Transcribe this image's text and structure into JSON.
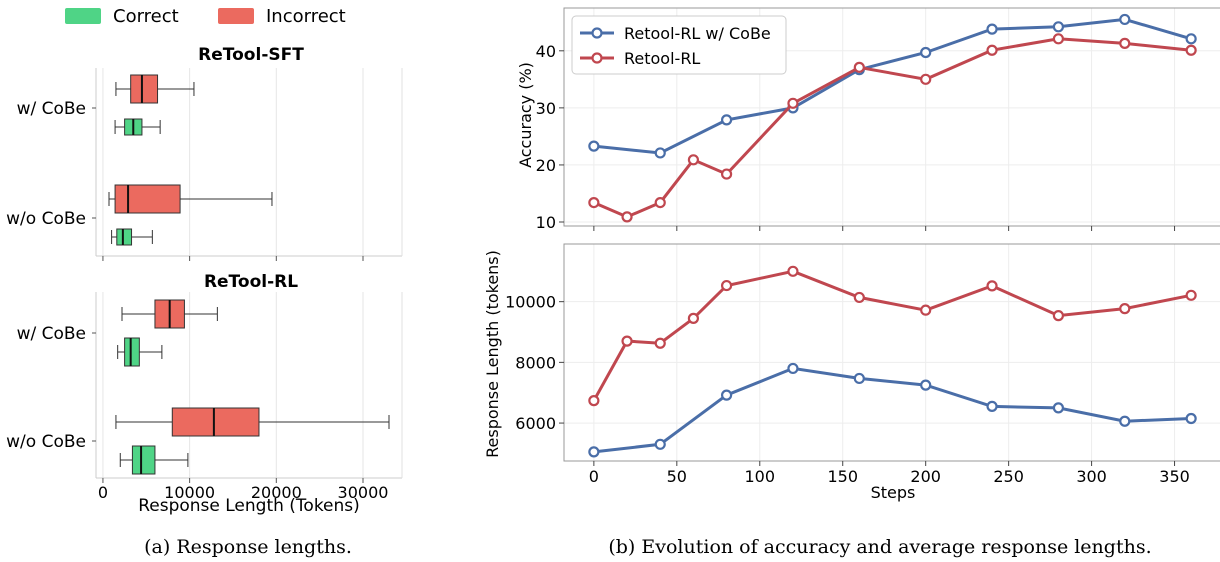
{
  "legend_box": {
    "items": [
      {
        "label": "Correct",
        "color": "#4fd486"
      },
      {
        "label": "Incorrect",
        "color": "#eb6a5f"
      }
    ]
  },
  "captions": {
    "a": "(a) Response lengths.",
    "b": "(b) Evolution of accuracy and average response lengths."
  },
  "chart_data": [
    {
      "type": "box",
      "orientation": "horizontal",
      "title": "ReTool-SFT",
      "categories": [
        "w/ CoBe",
        "w/o CoBe"
      ],
      "xlabel": "",
      "xlim": [
        -800,
        34500
      ],
      "xticks": [
        0,
        10000,
        20000,
        30000
      ],
      "grid": true,
      "series": [
        {
          "name": "Incorrect",
          "color": "#eb6a5f",
          "boxes": [
            {
              "category": "w/ CoBe",
              "whislo": 1500,
              "q1": 3200,
              "med": 4500,
              "q3": 6300,
              "whishi": 10500
            },
            {
              "category": "w/o CoBe",
              "whislo": 700,
              "q1": 1400,
              "med": 2900,
              "q3": 8900,
              "whishi": 19500
            }
          ]
        },
        {
          "name": "Correct",
          "color": "#4fd486",
          "boxes": [
            {
              "category": "w/ CoBe",
              "whislo": 1400,
              "q1": 2500,
              "med": 3500,
              "q3": 4500,
              "whishi": 6600
            },
            {
              "category": "w/o CoBe",
              "whislo": 1000,
              "q1": 1600,
              "med": 2300,
              "q3": 3300,
              "whishi": 5700
            }
          ]
        }
      ]
    },
    {
      "type": "box",
      "orientation": "horizontal",
      "title": "ReTool-RL",
      "categories": [
        "w/ CoBe",
        "w/o CoBe"
      ],
      "xlabel": "Response Length (Tokens)",
      "xlim": [
        -800,
        34500
      ],
      "xticks": [
        0,
        10000,
        20000,
        30000
      ],
      "xticklabels": [
        "0",
        "10000",
        "20000",
        "30000"
      ],
      "grid": true,
      "series": [
        {
          "name": "Incorrect",
          "color": "#eb6a5f",
          "boxes": [
            {
              "category": "w/ CoBe",
              "whislo": 2200,
              "q1": 6000,
              "med": 7700,
              "q3": 9400,
              "whishi": 13200
            },
            {
              "category": "w/o CoBe",
              "whislo": 1500,
              "q1": 8000,
              "med": 12800,
              "q3": 18000,
              "whishi": 33000
            }
          ]
        },
        {
          "name": "Correct",
          "color": "#4fd486",
          "boxes": [
            {
              "category": "w/ CoBe",
              "whislo": 1700,
              "q1": 2500,
              "med": 3200,
              "q3": 4200,
              "whishi": 6800
            },
            {
              "category": "w/o CoBe",
              "whislo": 2000,
              "q1": 3400,
              "med": 4400,
              "q3": 6000,
              "whishi": 9800
            }
          ]
        }
      ]
    },
    {
      "type": "line",
      "xlabel": "",
      "ylabel": "Accuracy (%)",
      "xlim": [
        -18,
        378
      ],
      "ylim": [
        9.3,
        47.5
      ],
      "yticks": [
        10,
        20,
        30,
        40
      ],
      "xticks": [
        0,
        50,
        100,
        150,
        200,
        250,
        300,
        350
      ],
      "grid": true,
      "legend": "top-left",
      "series": [
        {
          "name": "Retool-RL w/ CoBe",
          "color": "#4a6ea8",
          "x": [
            0,
            40,
            80,
            120,
            160,
            200,
            240,
            280,
            320,
            360
          ],
          "y": [
            23.3,
            22.1,
            27.9,
            30.0,
            36.7,
            39.7,
            43.8,
            44.2,
            45.5,
            42.1
          ]
        },
        {
          "name": "Retool-RL",
          "color": "#c0474f",
          "x": [
            0,
            20,
            40,
            60,
            80,
            120,
            160,
            200,
            240,
            280,
            320,
            360
          ],
          "y": [
            13.4,
            10.9,
            13.4,
            20.9,
            18.4,
            30.8,
            37.1,
            35.0,
            40.1,
            42.1,
            41.3,
            40.1
          ]
        }
      ]
    },
    {
      "type": "line",
      "xlabel": "Steps",
      "ylabel": "Response Length (tokens)",
      "xlim": [
        -18,
        378
      ],
      "ylim": [
        4750,
        11900
      ],
      "yticks": [
        6000,
        8000,
        10000
      ],
      "xticks": [
        0,
        50,
        100,
        150,
        200,
        250,
        300,
        350
      ],
      "xticklabels": [
        "0",
        "50",
        "100",
        "150",
        "200",
        "250",
        "300",
        "350"
      ],
      "grid": true,
      "series": [
        {
          "name": "Retool-RL w/ CoBe",
          "color": "#4a6ea8",
          "x": [
            0,
            40,
            80,
            120,
            160,
            200,
            240,
            280,
            320,
            360
          ],
          "y": [
            5050,
            5300,
            6920,
            7800,
            7470,
            7250,
            6550,
            6500,
            6060,
            6150
          ]
        },
        {
          "name": "Retool-RL",
          "color": "#c0474f",
          "x": [
            0,
            20,
            40,
            60,
            80,
            120,
            160,
            200,
            240,
            280,
            320,
            360
          ],
          "y": [
            6740,
            8700,
            8630,
            9450,
            10530,
            11000,
            10140,
            9720,
            10520,
            9540,
            9770,
            10210
          ]
        }
      ]
    }
  ]
}
